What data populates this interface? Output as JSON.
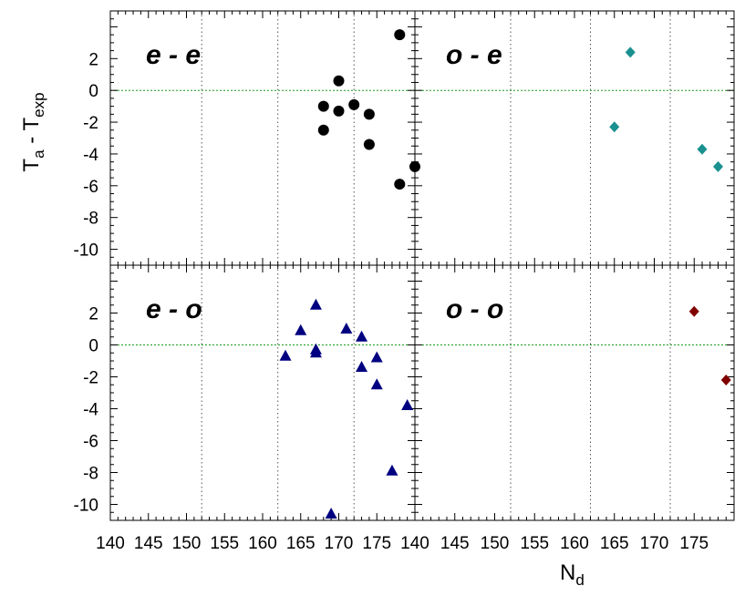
{
  "chart_data": {
    "type": "scatter",
    "y_label": {
      "main": "T",
      "sub1": "a",
      "mid": " - T",
      "sub2": "exp"
    },
    "x_label": {
      "main": "N",
      "sub": "d"
    },
    "xlim": [
      140,
      180
    ],
    "ylim": [
      -11,
      5
    ],
    "x_ticks": [
      140,
      145,
      150,
      155,
      160,
      165,
      170,
      175
    ],
    "y_ticks": [
      2,
      0,
      -2,
      -4,
      -6,
      -8,
      -10
    ],
    "vertical_reference_lines": [
      152,
      162,
      172
    ],
    "horizontal_reference_line": 0,
    "panels": [
      {
        "label": "e - e",
        "position": "top-left",
        "marker": "circle",
        "color": "#000000",
        "points": [
          {
            "x": 168,
            "y": -1.0
          },
          {
            "x": 168,
            "y": -2.5
          },
          {
            "x": 170,
            "y": 0.6
          },
          {
            "x": 170,
            "y": -1.3
          },
          {
            "x": 172,
            "y": -0.9
          },
          {
            "x": 174,
            "y": -1.5
          },
          {
            "x": 174,
            "y": -3.4
          },
          {
            "x": 178,
            "y": 3.5
          },
          {
            "x": 178,
            "y": -5.9
          },
          {
            "x": 180,
            "y": -4.8
          }
        ]
      },
      {
        "label": "o - e",
        "position": "top-right",
        "marker": "diamond",
        "color": "#1a9090",
        "points": [
          {
            "x": 165,
            "y": -2.3
          },
          {
            "x": 167,
            "y": 2.4
          },
          {
            "x": 176,
            "y": -3.7
          },
          {
            "x": 178,
            "y": -4.8
          }
        ]
      },
      {
        "label": "e - o",
        "position": "bottom-left",
        "marker": "triangle",
        "color": "#000080",
        "points": [
          {
            "x": 163,
            "y": -0.7
          },
          {
            "x": 165,
            "y": 0.9
          },
          {
            "x": 167,
            "y": 2.5
          },
          {
            "x": 167,
            "y": -0.3
          },
          {
            "x": 167,
            "y": -0.5
          },
          {
            "x": 169,
            "y": -10.6
          },
          {
            "x": 171,
            "y": 1.0
          },
          {
            "x": 173,
            "y": 0.5
          },
          {
            "x": 173,
            "y": -1.4
          },
          {
            "x": 175,
            "y": -0.8
          },
          {
            "x": 175,
            "y": -2.5
          },
          {
            "x": 177,
            "y": -7.9
          },
          {
            "x": 179,
            "y": -3.8
          }
        ]
      },
      {
        "label": "o - o",
        "position": "bottom-right",
        "marker": "diamond",
        "color": "#800000",
        "points": [
          {
            "x": 175,
            "y": 2.1
          },
          {
            "x": 179,
            "y": -2.2
          }
        ]
      }
    ]
  }
}
